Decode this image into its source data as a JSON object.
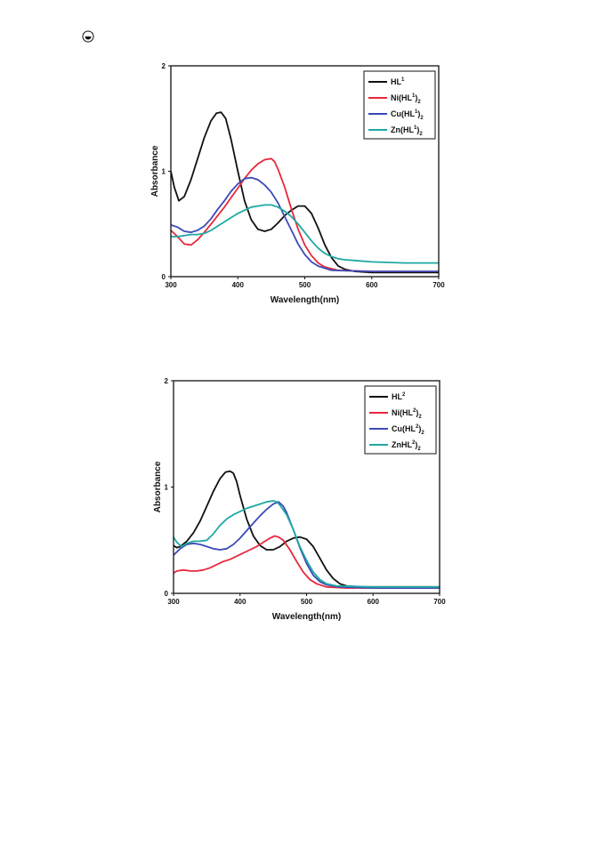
{
  "page": {
    "icon": "circle-mark-icon"
  },
  "chart_data": [
    {
      "type": "line",
      "xlabel": "Wavelength(nm)",
      "ylabel": "Absorbance",
      "xlim": [
        300,
        700
      ],
      "ylim": [
        0,
        2
      ],
      "xticks": [
        300,
        400,
        500,
        600,
        700
      ],
      "yticks": [
        0,
        1,
        2
      ],
      "legend_position": "top-right",
      "series": [
        {
          "name": "HL",
          "sup": "1",
          "sub": "",
          "color": "#111111",
          "points": [
            [
              300,
              1.0
            ],
            [
              305,
              0.85
            ],
            [
              312,
              0.72
            ],
            [
              320,
              0.76
            ],
            [
              330,
              0.92
            ],
            [
              340,
              1.12
            ],
            [
              350,
              1.32
            ],
            [
              360,
              1.48
            ],
            [
              368,
              1.55
            ],
            [
              375,
              1.56
            ],
            [
              382,
              1.5
            ],
            [
              390,
              1.3
            ],
            [
              400,
              1.0
            ],
            [
              410,
              0.72
            ],
            [
              420,
              0.54
            ],
            [
              430,
              0.45
            ],
            [
              440,
              0.43
            ],
            [
              450,
              0.45
            ],
            [
              460,
              0.51
            ],
            [
              470,
              0.58
            ],
            [
              480,
              0.63
            ],
            [
              490,
              0.67
            ],
            [
              500,
              0.67
            ],
            [
              510,
              0.6
            ],
            [
              520,
              0.46
            ],
            [
              530,
              0.3
            ],
            [
              540,
              0.18
            ],
            [
              550,
              0.1
            ],
            [
              560,
              0.07
            ],
            [
              575,
              0.05
            ],
            [
              600,
              0.04
            ],
            [
              650,
              0.04
            ],
            [
              700,
              0.04
            ]
          ]
        },
        {
          "name": "Ni(HL",
          "sup": "1",
          "sub": "2",
          "color": "#e8283c",
          "points": [
            [
              300,
              0.44
            ],
            [
              310,
              0.38
            ],
            [
              320,
              0.31
            ],
            [
              330,
              0.3
            ],
            [
              340,
              0.35
            ],
            [
              350,
              0.42
            ],
            [
              360,
              0.5
            ],
            [
              370,
              0.58
            ],
            [
              380,
              0.66
            ],
            [
              390,
              0.75
            ],
            [
              400,
              0.84
            ],
            [
              410,
              0.93
            ],
            [
              420,
              1.01
            ],
            [
              430,
              1.07
            ],
            [
              440,
              1.11
            ],
            [
              450,
              1.12
            ],
            [
              455,
              1.09
            ],
            [
              460,
              1.02
            ],
            [
              470,
              0.85
            ],
            [
              480,
              0.64
            ],
            [
              490,
              0.45
            ],
            [
              500,
              0.3
            ],
            [
              510,
              0.2
            ],
            [
              520,
              0.13
            ],
            [
              530,
              0.09
            ],
            [
              550,
              0.06
            ],
            [
              600,
              0.05
            ],
            [
              700,
              0.05
            ]
          ]
        },
        {
          "name": "Cu(HL",
          "sup": "1",
          "sub": "2",
          "color": "#3b4ab8",
          "points": [
            [
              300,
              0.49
            ],
            [
              310,
              0.47
            ],
            [
              320,
              0.43
            ],
            [
              330,
              0.42
            ],
            [
              340,
              0.44
            ],
            [
              350,
              0.48
            ],
            [
              360,
              0.55
            ],
            [
              370,
              0.64
            ],
            [
              380,
              0.72
            ],
            [
              390,
              0.81
            ],
            [
              400,
              0.88
            ],
            [
              410,
              0.93
            ],
            [
              420,
              0.94
            ],
            [
              430,
              0.92
            ],
            [
              440,
              0.87
            ],
            [
              450,
              0.8
            ],
            [
              460,
              0.7
            ],
            [
              470,
              0.57
            ],
            [
              480,
              0.44
            ],
            [
              490,
              0.31
            ],
            [
              500,
              0.21
            ],
            [
              510,
              0.14
            ],
            [
              520,
              0.1
            ],
            [
              540,
              0.06
            ],
            [
              600,
              0.05
            ],
            [
              700,
              0.05
            ]
          ]
        },
        {
          "name": "Zn(HL",
          "sup": "1",
          "sub": "2",
          "color": "#1fa8a4",
          "points": [
            [
              300,
              0.38
            ],
            [
              310,
              0.38
            ],
            [
              320,
              0.39
            ],
            [
              330,
              0.4
            ],
            [
              340,
              0.4
            ],
            [
              350,
              0.41
            ],
            [
              360,
              0.44
            ],
            [
              370,
              0.48
            ],
            [
              380,
              0.52
            ],
            [
              390,
              0.56
            ],
            [
              400,
              0.6
            ],
            [
              410,
              0.63
            ],
            [
              420,
              0.66
            ],
            [
              430,
              0.67
            ],
            [
              440,
              0.68
            ],
            [
              450,
              0.68
            ],
            [
              460,
              0.66
            ],
            [
              470,
              0.62
            ],
            [
              480,
              0.57
            ],
            [
              490,
              0.5
            ],
            [
              500,
              0.42
            ],
            [
              510,
              0.34
            ],
            [
              520,
              0.27
            ],
            [
              530,
              0.22
            ],
            [
              540,
              0.19
            ],
            [
              550,
              0.17
            ],
            [
              560,
              0.16
            ],
            [
              580,
              0.15
            ],
            [
              600,
              0.14
            ],
            [
              650,
              0.13
            ],
            [
              700,
              0.13
            ]
          ]
        }
      ]
    },
    {
      "type": "line",
      "xlabel": "Wavelength(nm)",
      "ylabel": "Absorbance",
      "xlim": [
        300,
        700
      ],
      "ylim": [
        0,
        2
      ],
      "xticks": [
        300,
        400,
        500,
        600,
        700
      ],
      "yticks": [
        0,
        1,
        2
      ],
      "legend_position": "top-right",
      "series": [
        {
          "name": "HL",
          "sup": "2",
          "sub": "",
          "color": "#111111",
          "points": [
            [
              300,
              0.45
            ],
            [
              305,
              0.43
            ],
            [
              310,
              0.44
            ],
            [
              320,
              0.49
            ],
            [
              330,
              0.57
            ],
            [
              340,
              0.68
            ],
            [
              350,
              0.82
            ],
            [
              360,
              0.96
            ],
            [
              370,
              1.08
            ],
            [
              378,
              1.14
            ],
            [
              385,
              1.15
            ],
            [
              390,
              1.13
            ],
            [
              395,
              1.05
            ],
            [
              400,
              0.92
            ],
            [
              410,
              0.7
            ],
            [
              420,
              0.54
            ],
            [
              430,
              0.45
            ],
            [
              440,
              0.41
            ],
            [
              450,
              0.41
            ],
            [
              460,
              0.44
            ],
            [
              470,
              0.49
            ],
            [
              480,
              0.52
            ],
            [
              490,
              0.53
            ],
            [
              500,
              0.51
            ],
            [
              510,
              0.44
            ],
            [
              520,
              0.33
            ],
            [
              530,
              0.22
            ],
            [
              540,
              0.14
            ],
            [
              550,
              0.09
            ],
            [
              560,
              0.07
            ],
            [
              580,
              0.06
            ],
            [
              600,
              0.06
            ],
            [
              700,
              0.06
            ]
          ]
        },
        {
          "name": "Ni(HL",
          "sup": "2",
          "sub": "2",
          "color": "#e8283c",
          "points": [
            [
              300,
              0.19
            ],
            [
              305,
              0.21
            ],
            [
              315,
              0.22
            ],
            [
              325,
              0.21
            ],
            [
              335,
              0.21
            ],
            [
              345,
              0.22
            ],
            [
              355,
              0.24
            ],
            [
              365,
              0.27
            ],
            [
              375,
              0.3
            ],
            [
              385,
              0.32
            ],
            [
              395,
              0.35
            ],
            [
              405,
              0.38
            ],
            [
              415,
              0.41
            ],
            [
              425,
              0.44
            ],
            [
              435,
              0.48
            ],
            [
              445,
              0.52
            ],
            [
              452,
              0.54
            ],
            [
              458,
              0.53
            ],
            [
              465,
              0.5
            ],
            [
              475,
              0.41
            ],
            [
              485,
              0.3
            ],
            [
              495,
              0.2
            ],
            [
              505,
              0.13
            ],
            [
              515,
              0.09
            ],
            [
              530,
              0.06
            ],
            [
              560,
              0.05
            ],
            [
              600,
              0.05
            ],
            [
              700,
              0.05
            ]
          ]
        },
        {
          "name": "Cu(HL",
          "sup": "2",
          "sub": "2",
          "color": "#3b4ab8",
          "points": [
            [
              300,
              0.36
            ],
            [
              310,
              0.42
            ],
            [
              320,
              0.46
            ],
            [
              330,
              0.47
            ],
            [
              340,
              0.46
            ],
            [
              350,
              0.44
            ],
            [
              360,
              0.42
            ],
            [
              370,
              0.41
            ],
            [
              380,
              0.42
            ],
            [
              390,
              0.46
            ],
            [
              400,
              0.52
            ],
            [
              410,
              0.59
            ],
            [
              420,
              0.66
            ],
            [
              430,
              0.73
            ],
            [
              440,
              0.79
            ],
            [
              450,
              0.84
            ],
            [
              458,
              0.86
            ],
            [
              465,
              0.82
            ],
            [
              470,
              0.76
            ],
            [
              480,
              0.6
            ],
            [
              490,
              0.43
            ],
            [
              500,
              0.28
            ],
            [
              510,
              0.17
            ],
            [
              520,
              0.11
            ],
            [
              530,
              0.08
            ],
            [
              550,
              0.06
            ],
            [
              600,
              0.05
            ],
            [
              700,
              0.05
            ]
          ]
        },
        {
          "name": "ZnHL",
          "sup": "2",
          "sub": "2",
          "color": "#1fa8a4",
          "points": [
            [
              300,
              0.53
            ],
            [
              305,
              0.48
            ],
            [
              312,
              0.44
            ],
            [
              320,
              0.47
            ],
            [
              330,
              0.49
            ],
            [
              340,
              0.49
            ],
            [
              350,
              0.5
            ],
            [
              360,
              0.56
            ],
            [
              370,
              0.64
            ],
            [
              380,
              0.7
            ],
            [
              390,
              0.74
            ],
            [
              400,
              0.77
            ],
            [
              410,
              0.8
            ],
            [
              420,
              0.82
            ],
            [
              430,
              0.84
            ],
            [
              440,
              0.86
            ],
            [
              450,
              0.87
            ],
            [
              455,
              0.86
            ],
            [
              460,
              0.83
            ],
            [
              470,
              0.74
            ],
            [
              480,
              0.6
            ],
            [
              490,
              0.44
            ],
            [
              500,
              0.31
            ],
            [
              510,
              0.2
            ],
            [
              520,
              0.13
            ],
            [
              530,
              0.09
            ],
            [
              545,
              0.07
            ],
            [
              600,
              0.06
            ],
            [
              700,
              0.06
            ]
          ]
        }
      ]
    }
  ]
}
